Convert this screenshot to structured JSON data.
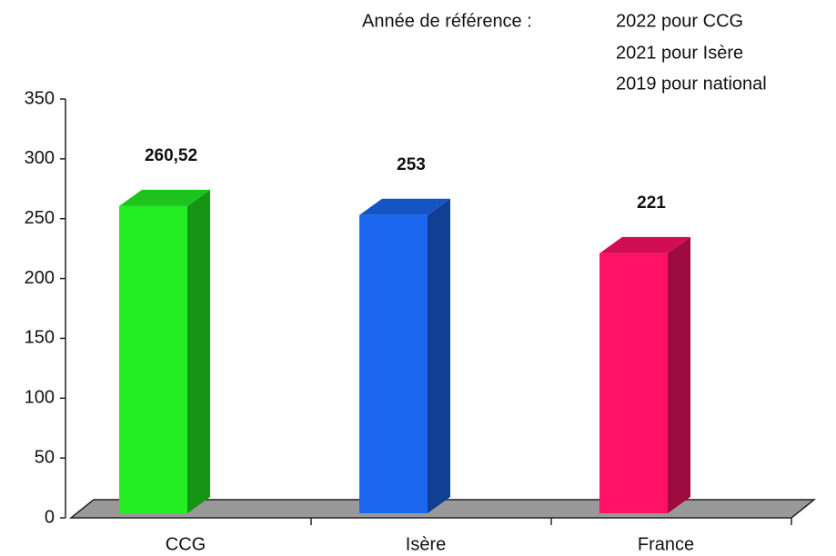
{
  "chart_data": {
    "type": "bar3d",
    "annotation": {
      "title": "Année de référence :",
      "lines": [
        "2022 pour CCG",
        "2021 pour Isère",
        "2019 pour national"
      ]
    },
    "categories": [
      "CCG",
      "Isère",
      "France"
    ],
    "values": [
      260.52,
      253,
      221
    ],
    "value_labels": [
      "260,52",
      "253",
      "221"
    ],
    "colors": [
      "#22ee22",
      "#1a66ee",
      "#ff1166"
    ],
    "ylim": [
      0,
      350
    ],
    "yticks": [
      0,
      50,
      100,
      150,
      200,
      250,
      300,
      350
    ],
    "grid": false
  }
}
